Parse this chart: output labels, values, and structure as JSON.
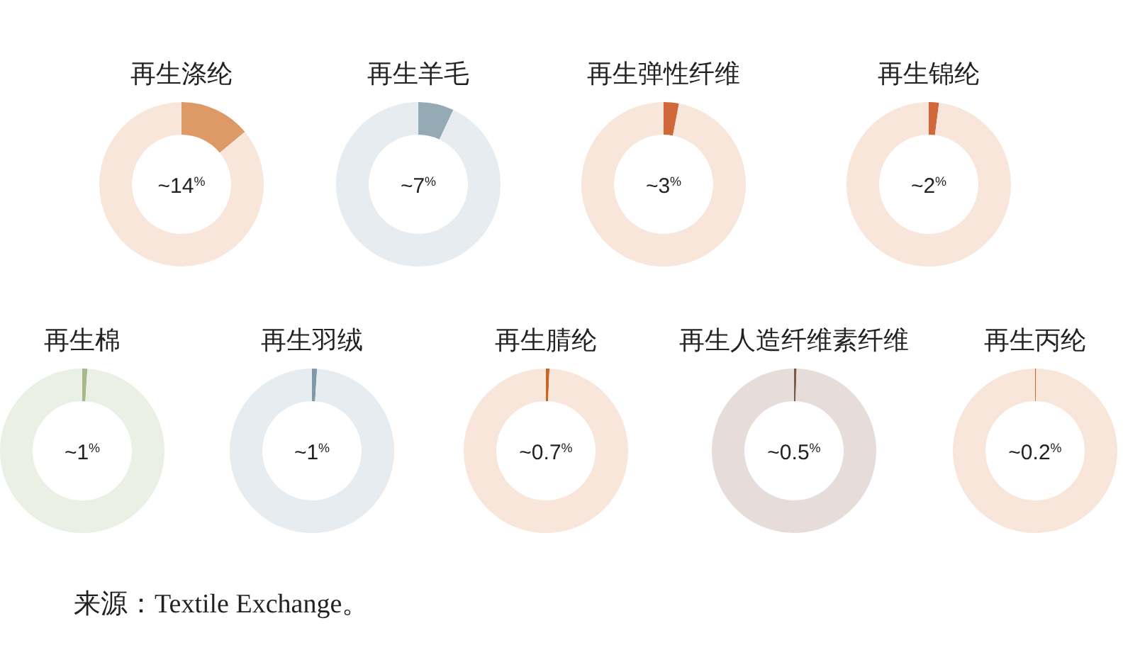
{
  "chart_data": [
    {
      "type": "donut",
      "title": "再生涤纶",
      "categories": [
        null,
        null
      ],
      "values": [
        14,
        86
      ],
      "colors": [
        "#dd9a66",
        "#f8e6da"
      ],
      "annotations": [
        "~14$^{%}$"
      ]
    },
    {
      "type": "donut",
      "title": "再生羊毛",
      "categories": [
        null,
        null
      ],
      "values": [
        7,
        93
      ],
      "colors": [
        "#94aab4",
        "#e7ecf0"
      ],
      "annotations": [
        "~7$^{%}$"
      ]
    },
    {
      "type": "donut",
      "title": "再生弹性纤维",
      "categories": [
        null,
        null
      ],
      "values": [
        3,
        97
      ],
      "colors": [
        "#d0683a",
        "#f8e6da"
      ],
      "annotations": [
        "~3$^{%}$"
      ]
    },
    {
      "type": "donut",
      "title": "再生锦纶",
      "categories": [
        null,
        null
      ],
      "values": [
        2,
        98
      ],
      "colors": [
        "#d0683a",
        "#f8e6da"
      ],
      "annotations": [
        "~2$^{%}$"
      ]
    },
    {
      "type": "donut",
      "title": "再生棉",
      "categories": [
        null,
        null
      ],
      "values": [
        1,
        99
      ],
      "colors": [
        "#a4b98c",
        "#eaf1e4"
      ],
      "annotations": [
        "~1$^{%}$"
      ]
    },
    {
      "type": "donut",
      "title": "再生羽绒",
      "categories": [
        null,
        null
      ],
      "values": [
        1,
        99
      ],
      "colors": [
        "#7d9aa6",
        "#e7ecf0"
      ],
      "annotations": [
        "~1$^{%}$"
      ]
    },
    {
      "type": "donut",
      "title": "再生腈纶",
      "categories": [
        null,
        null
      ],
      "values": [
        0.7,
        99.3
      ],
      "colors": [
        "#c8662a",
        "#f8e6da"
      ],
      "annotations": [
        "~0.7$^{%}$"
      ]
    },
    {
      "type": "donut",
      "title": "再生人造纤维素纤维",
      "categories": [
        null,
        null
      ],
      "values": [
        0.5,
        99.5
      ],
      "colors": [
        "#7a5a48",
        "#e6dcda"
      ],
      "annotations": [
        "~0.5$^{%}$"
      ]
    },
    {
      "type": "donut",
      "title": "再生丙纶",
      "categories": [
        null,
        null
      ],
      "values": [
        0.2,
        99.8
      ],
      "colors": [
        "#c8662a",
        "#f8e6da"
      ],
      "annotations": [
        "~0.2$^{%}$",
        "来源：Textile Exchange。"
      ]
    }
  ]
}
